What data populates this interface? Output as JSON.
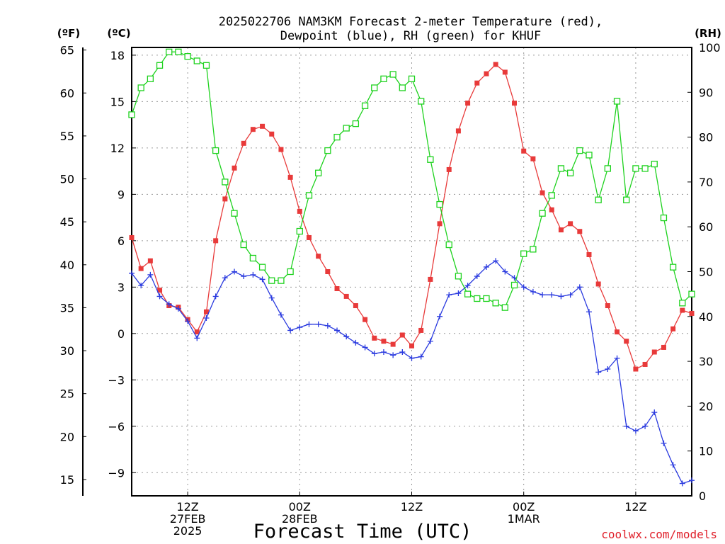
{
  "chart_data": {
    "type": "line",
    "title_line1": "2025022706 NAM3KM Forecast 2-meter Temperature (red),",
    "title_line2": "Dewpoint (blue), RH (green) for KHUF",
    "units": {
      "fahrenheit": "(ºF)",
      "celsius": "(ºC)",
      "rh": "(RH)"
    },
    "xlabel": "Forecast Time (UTC)",
    "credit": "coolwx.com/models",
    "x_start": "2025-02-27 06Z",
    "x_step_hours": 1,
    "x_ticks": [
      {
        "hour": 6,
        "line1": "12Z",
        "line2": "27FEB",
        "line3": "2025"
      },
      {
        "hour": 18,
        "line1": "00Z",
        "line2": "28FEB",
        "line3": ""
      },
      {
        "hour": 30,
        "line1": "12Z",
        "line2": "",
        "line3": ""
      },
      {
        "hour": 42,
        "line1": "00Z",
        "line2": "1MAR",
        "line3": ""
      },
      {
        "hour": 54,
        "line1": "12Z",
        "line2": "",
        "line3": ""
      }
    ],
    "xlim": [
      0,
      60
    ],
    "left_axis_celsius": {
      "ticks": [
        -9,
        -6,
        -3,
        0,
        3,
        6,
        9,
        12,
        15,
        18
      ],
      "range": [
        -10.5,
        18.5
      ]
    },
    "left_axis_fahrenheit": {
      "ticks": [
        15,
        20,
        25,
        30,
        35,
        40,
        45,
        50,
        55,
        60,
        65
      ]
    },
    "right_axis_rh": {
      "ticks": [
        0,
        10,
        20,
        30,
        40,
        50,
        60,
        70,
        80,
        90,
        100
      ],
      "range": [
        0,
        100
      ]
    },
    "grid": true,
    "colors": {
      "temperature": "#e83a3a",
      "dewpoint": "#2a3adf",
      "rh": "#1ed21e",
      "grid": "#9a9a9a"
    },
    "series": [
      {
        "key": "temperature",
        "axis": "celsius",
        "marker": "filled-square",
        "values": [
          6.2,
          4.2,
          4.7,
          2.8,
          1.8,
          1.7,
          0.9,
          0.1,
          1.4,
          6.0,
          8.7,
          10.7,
          12.3,
          13.2,
          13.4,
          12.9,
          11.9,
          10.1,
          7.9,
          6.2,
          5.0,
          4.0,
          2.9,
          2.4,
          1.8,
          0.9,
          -0.3,
          -0.5,
          -0.7,
          -0.1,
          -0.8,
          0.2,
          3.5,
          7.1,
          10.6,
          13.1,
          14.9,
          16.2,
          16.8,
          17.4,
          16.9,
          14.9,
          11.8,
          11.3,
          9.1,
          8.0,
          6.7,
          7.1,
          6.6,
          5.1,
          3.2,
          1.8,
          0.1,
          -0.5,
          -2.3,
          -2.0,
          -1.2,
          -0.9,
          0.3,
          1.5,
          1.3
        ]
      },
      {
        "key": "dewpoint",
        "axis": "celsius",
        "marker": "plus",
        "values": [
          3.9,
          3.1,
          3.8,
          2.4,
          1.9,
          1.6,
          0.8,
          -0.3,
          1.0,
          2.4,
          3.6,
          4.0,
          3.7,
          3.8,
          3.5,
          2.3,
          1.2,
          0.2,
          0.4,
          0.6,
          0.6,
          0.5,
          0.2,
          -0.2,
          -0.6,
          -0.9,
          -1.3,
          -1.2,
          -1.4,
          -1.2,
          -1.6,
          -1.5,
          -0.5,
          1.1,
          2.5,
          2.6,
          3.1,
          3.7,
          4.3,
          4.7,
          4.0,
          3.6,
          3.0,
          2.7,
          2.5,
          2.5,
          2.4,
          2.5,
          3.0,
          1.4,
          -2.5,
          -2.3,
          -1.6,
          -6.0,
          -6.3,
          -6.0,
          -5.1,
          -7.1,
          -8.5,
          -9.7,
          -9.5
        ]
      },
      {
        "key": "rh",
        "axis": "rh",
        "marker": "open-square",
        "values": [
          85,
          91,
          93,
          96,
          99,
          99,
          98,
          97,
          96,
          77,
          70,
          63,
          56,
          53,
          51,
          48,
          48,
          50,
          59,
          67,
          72,
          77,
          80,
          82,
          83,
          87,
          91,
          93,
          94,
          91,
          93,
          88,
          75,
          65,
          56,
          49,
          45,
          44,
          44,
          43,
          42,
          47,
          54,
          55,
          63,
          67,
          73,
          72,
          77,
          76,
          66,
          73,
          88,
          66,
          73,
          73,
          74,
          62,
          51,
          43,
          45
        ]
      }
    ]
  }
}
